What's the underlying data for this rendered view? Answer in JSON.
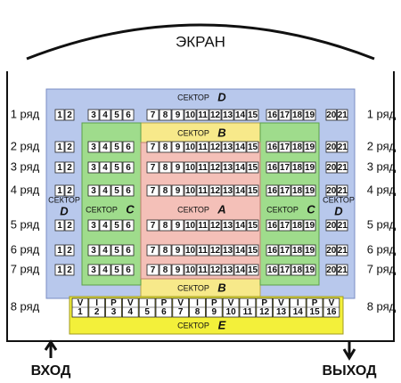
{
  "screen": "ЭКРАН",
  "sectors": {
    "D_top": {
      "word": "СЕКТОР",
      "letter": "D"
    },
    "D_left": {
      "word": "СЕКТОР",
      "letter": "D"
    },
    "D_right": {
      "word": "СЕКТОР",
      "letter": "D"
    },
    "B_top": {
      "word": "СЕКТОР",
      "letter": "B"
    },
    "B_bottom": {
      "word": "СЕКТОР",
      "letter": "B"
    },
    "C_left": {
      "word": "СЕКТОР",
      "letter": "C"
    },
    "C_right": {
      "word": "СЕКТОР",
      "letter": "C"
    },
    "A": {
      "word": "СЕКТОР",
      "letter": "A"
    },
    "E": {
      "word": "СЕКТОР",
      "letter": "E"
    }
  },
  "rows": [
    {
      "label": "1 ряд",
      "groups": [
        [
          1,
          2
        ],
        [
          3,
          4,
          5,
          6
        ],
        [
          7,
          8,
          9,
          10,
          11,
          12,
          13,
          14,
          15
        ],
        [
          16,
          17,
          18,
          19
        ],
        [
          20,
          21
        ]
      ]
    },
    {
      "label": "2 ряд",
      "groups": [
        [
          1,
          2
        ],
        [
          3,
          4,
          5,
          6
        ],
        [
          7,
          8,
          9,
          10,
          11,
          12,
          13,
          14,
          15
        ],
        [
          16,
          17,
          18,
          19
        ],
        [
          20,
          21
        ]
      ]
    },
    {
      "label": "3 ряд",
      "groups": [
        [
          1,
          2
        ],
        [
          3,
          4,
          5,
          6
        ],
        [
          7,
          8,
          9,
          10,
          11,
          12,
          13,
          14,
          15
        ],
        [
          16,
          17,
          18,
          19
        ],
        [
          20,
          21
        ]
      ]
    },
    {
      "label": "4 ряд",
      "groups": [
        [
          1,
          2
        ],
        [
          3,
          4,
          5,
          6
        ],
        [
          7,
          8,
          9,
          10,
          11,
          12,
          13,
          14,
          15
        ],
        [
          16,
          17,
          18,
          19
        ],
        [
          20,
          21
        ]
      ]
    },
    {
      "label": "5 ряд",
      "groups": [
        [
          1,
          2
        ],
        [
          3,
          4,
          5,
          6
        ],
        [
          7,
          8,
          9,
          10,
          11,
          12,
          13,
          14,
          15
        ],
        [
          16,
          17,
          18,
          19
        ],
        [
          20,
          21
        ]
      ]
    },
    {
      "label": "6 ряд",
      "groups": [
        [
          1,
          2
        ],
        [
          3,
          4,
          5,
          6
        ],
        [
          7,
          8,
          9,
          10,
          11,
          12,
          13,
          14,
          15
        ],
        [
          16,
          17,
          18,
          19
        ],
        [
          20,
          21
        ]
      ]
    },
    {
      "label": "7 ряд",
      "groups": [
        [
          1,
          2
        ],
        [
          3,
          4,
          5,
          6
        ],
        [
          7,
          8,
          9,
          10,
          11,
          12,
          13,
          14,
          15
        ],
        [
          16,
          17,
          18,
          19
        ],
        [
          20,
          21
        ]
      ]
    }
  ],
  "vip_row": {
    "label": "8 ряд",
    "seats": [
      {
        "tag": "V",
        "number": 1
      },
      {
        "tag": "I",
        "number": 2
      },
      {
        "tag": "P",
        "number": 3
      },
      {
        "tag": "V",
        "number": 4
      },
      {
        "tag": "I",
        "number": 5
      },
      {
        "tag": "P",
        "number": 6
      },
      {
        "tag": "V",
        "number": 7
      },
      {
        "tag": "I",
        "number": 8
      },
      {
        "tag": "P",
        "number": 9
      },
      {
        "tag": "V",
        "number": 10
      },
      {
        "tag": "I",
        "number": 11
      },
      {
        "tag": "P",
        "number": 12
      },
      {
        "tag": "V",
        "number": 13
      },
      {
        "tag": "I",
        "number": 14
      },
      {
        "tag": "P",
        "number": 15
      },
      {
        "tag": "V",
        "number": 16
      }
    ]
  },
  "entrance": "ВХОД",
  "exit": "ВЫХОД"
}
